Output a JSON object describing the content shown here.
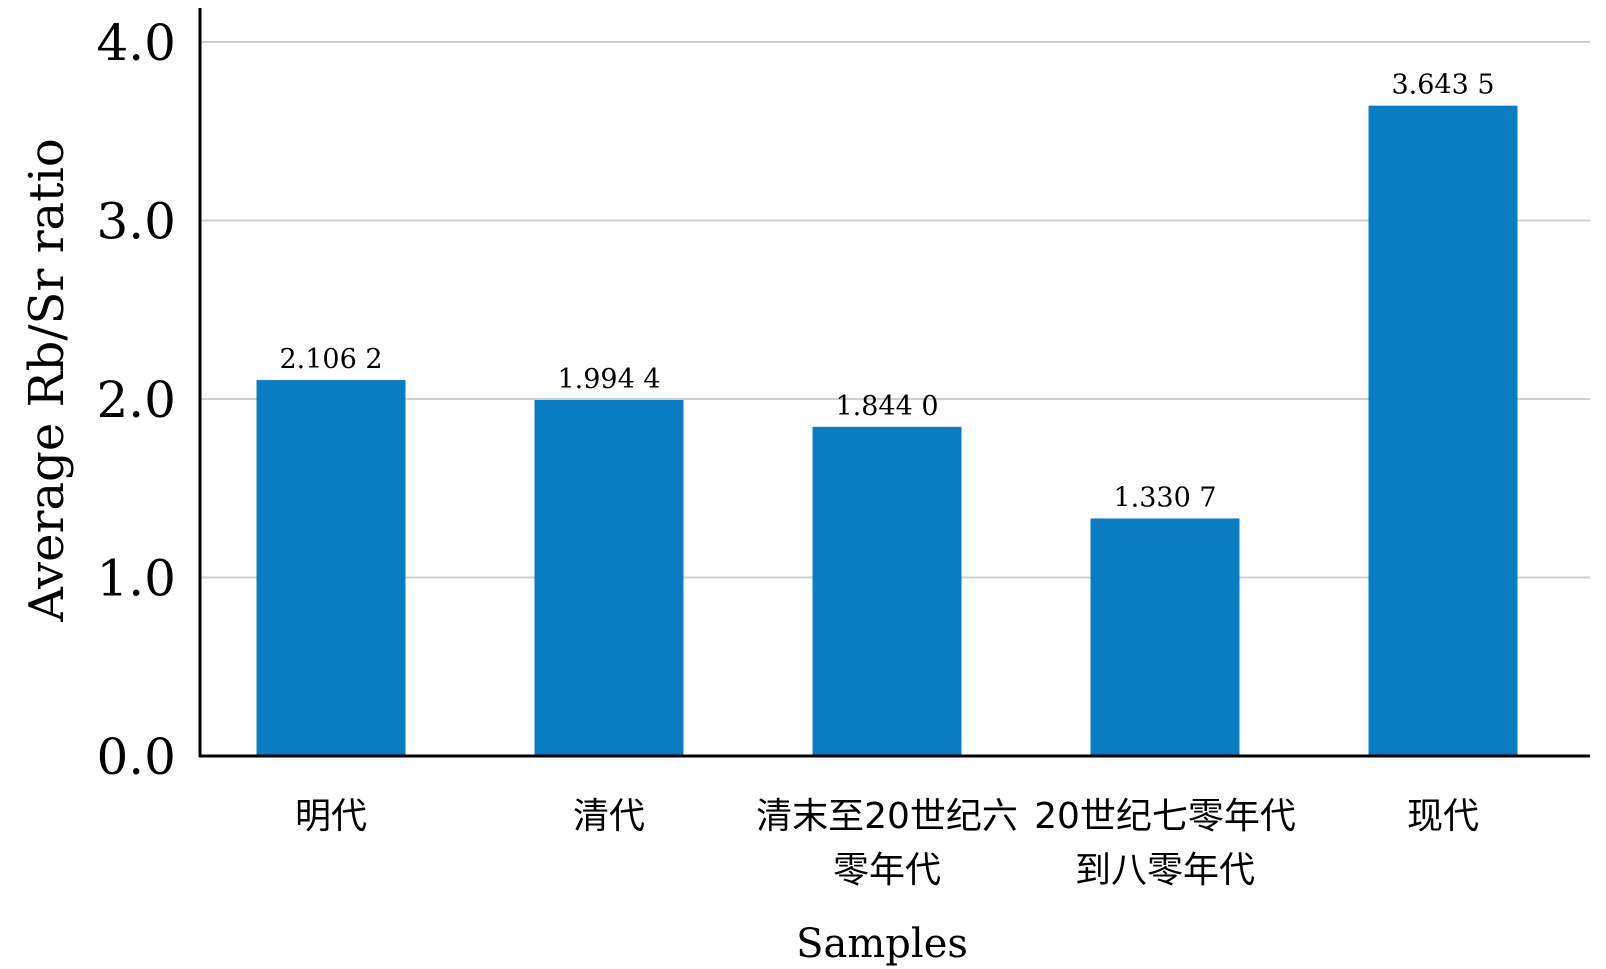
{
  "chart_data": {
    "type": "bar",
    "categories": [
      [
        "明代"
      ],
      [
        "清代"
      ],
      [
        "清末至20世纪六",
        "零年代"
      ],
      [
        "20世纪七零年代",
        "到八零年代"
      ],
      [
        "现代"
      ]
    ],
    "values": [
      2.1062,
      1.9944,
      1.844,
      1.3307,
      3.6435
    ],
    "value_labels": [
      "2.106 2",
      "1.994 4",
      "1.844 0",
      "1.330 7",
      "3.643 5"
    ],
    "yticks": [
      "0.0",
      "1.0",
      "2.0",
      "3.0",
      "4.0"
    ],
    "ylim": [
      0,
      4.0
    ],
    "xlabel": "Samples",
    "ylabel": "Average Rb/Sr ratio",
    "grid": true,
    "colors": {
      "bar": "#0a7cc2",
      "grid": "#c8d0d4",
      "axis": "#000000"
    }
  }
}
